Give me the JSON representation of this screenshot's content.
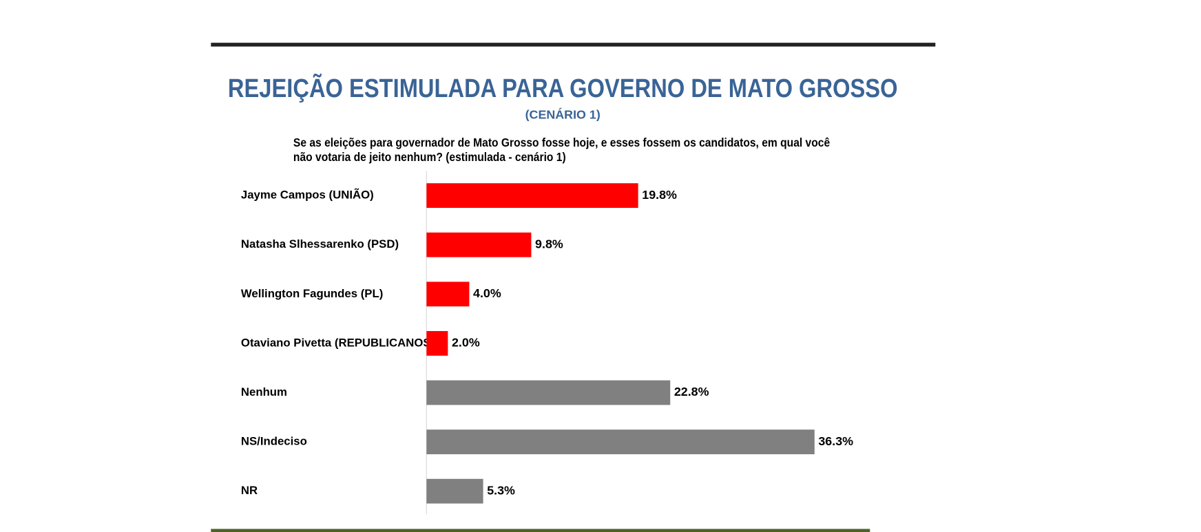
{
  "chart_data": {
    "type": "hbar",
    "title": "REJEIÇÃO ESTIMULADA PARA GOVERNO DE MATO GROSSO",
    "subtitle": "(CENÁRIO 1)",
    "question": [
      "Se as eleições para governador de Mato Grosso fosse hoje, e esses fossem os candidatos, em qual você",
      "não votaria de jeito nenhum? (estimulada - cenário 1)"
    ],
    "categories": [
      "Jayme Campos (UNIÃO)",
      "Natasha Slhessarenko (PSD)",
      "Wellington Fagundes (PL)",
      "Otaviano Pivetta (REPUBLICANOS)",
      "Nenhum",
      "NS/Indeciso",
      "NR"
    ],
    "values": [
      19.8,
      9.8,
      4.0,
      2.0,
      22.8,
      36.3,
      5.3
    ],
    "value_labels": [
      "19.8%",
      "9.8%",
      "4.0%",
      "2.0%",
      "22.8%",
      "36.3%",
      "5.3%"
    ],
    "colors": [
      "#ff0000",
      "#ff0000",
      "#ff0000",
      "#ff0000",
      "#808080",
      "#808080",
      "#808080"
    ]
  }
}
